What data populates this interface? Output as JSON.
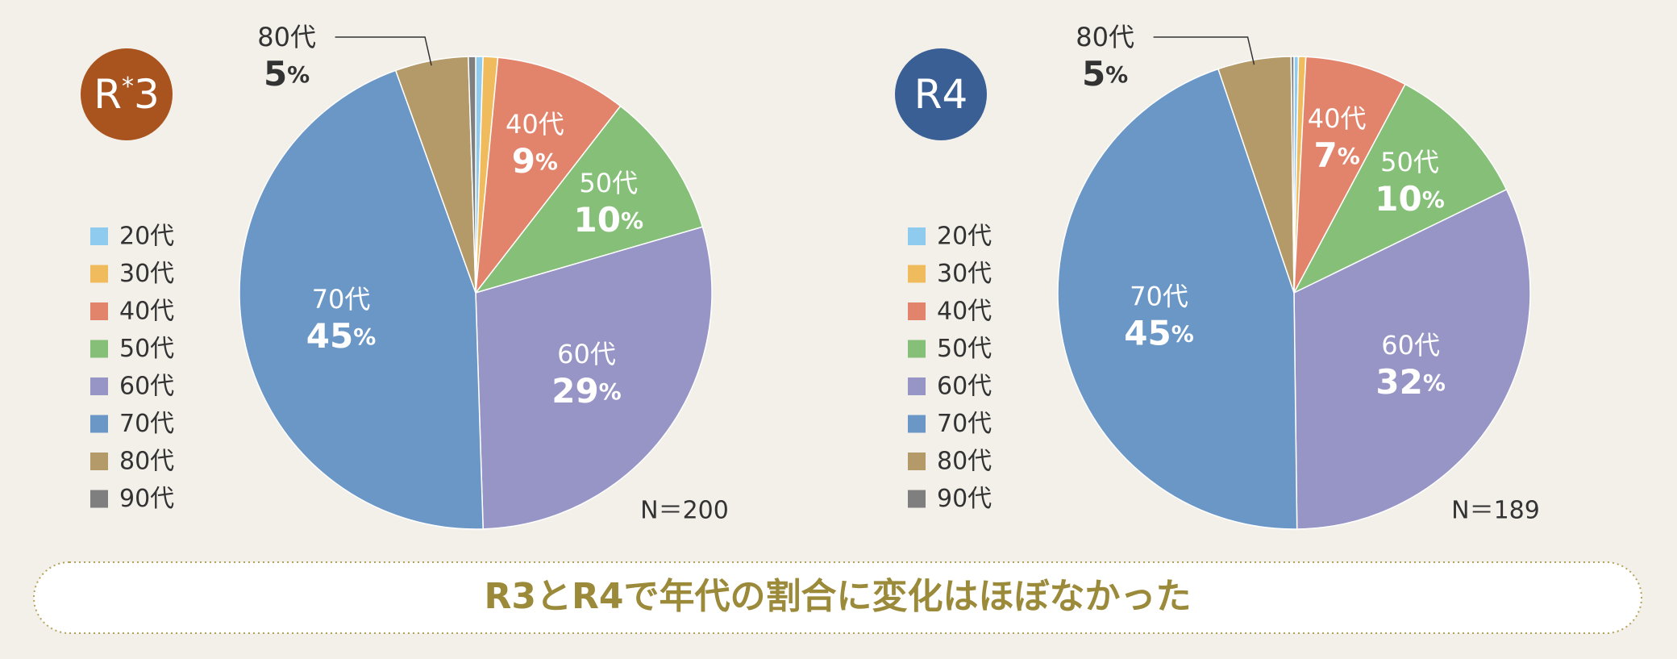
{
  "chart_data": [
    {
      "type": "pie",
      "badge": "R*3",
      "badge_color": "#a9531f",
      "note": "N＝200",
      "categories": [
        "20代",
        "30代",
        "40代",
        "50代",
        "60代",
        "70代",
        "80代",
        "90代"
      ],
      "values": [
        0.5,
        1,
        9,
        10,
        29,
        45,
        5,
        0.5
      ],
      "value_labels": [
        null,
        null,
        "9%",
        "10%",
        "29%",
        "45%",
        "5%",
        null
      ],
      "colors": [
        "#8ecbee",
        "#f0bb5c",
        "#e2846b",
        "#86bf78",
        "#9795c6",
        "#6b97c7",
        "#b39a68",
        "#7f7f7f"
      ]
    },
    {
      "type": "pie",
      "badge": "R4",
      "badge_color": "#3a5f94",
      "note": "N＝189",
      "categories": [
        "20代",
        "30代",
        "40代",
        "50代",
        "60代",
        "70代",
        "80代",
        "90代"
      ],
      "values": [
        0.3,
        0.5,
        7,
        10,
        32,
        45,
        5,
        0.2
      ],
      "value_labels": [
        null,
        null,
        "7%",
        "10%",
        "32%",
        "45%",
        "5%",
        null
      ],
      "colors": [
        "#8ecbee",
        "#f0bb5c",
        "#e2846b",
        "#86bf78",
        "#9795c6",
        "#6b97c7",
        "#b39a68",
        "#7f7f7f"
      ]
    }
  ],
  "conclusion": "R3とR4で年代の割合に変化はほぼなかった"
}
